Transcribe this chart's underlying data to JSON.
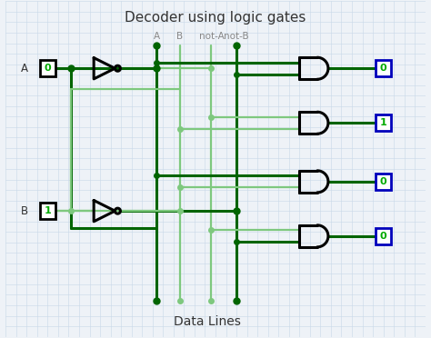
{
  "title": "Decoder using logic gates",
  "subtitle": "Data Lines",
  "bg_color": "#eef2f7",
  "grid_color": "#c8d8e8",
  "dark_green": "#006400",
  "light_green": "#7EC87E",
  "output_values": [
    "0",
    "1",
    "0",
    "0"
  ],
  "input_A": "0",
  "input_B": "1",
  "col_labels": [
    "A",
    "B",
    "not-A",
    "not-B"
  ],
  "col_label_color": "#888888",
  "text_color": "#333333",
  "gate_color": "#111111",
  "blue_color": "#0000bb",
  "green_text": "#00aa00",
  "title_fontsize": 11,
  "label_fontsize": 7.5,
  "io_fontsize": 8.5
}
